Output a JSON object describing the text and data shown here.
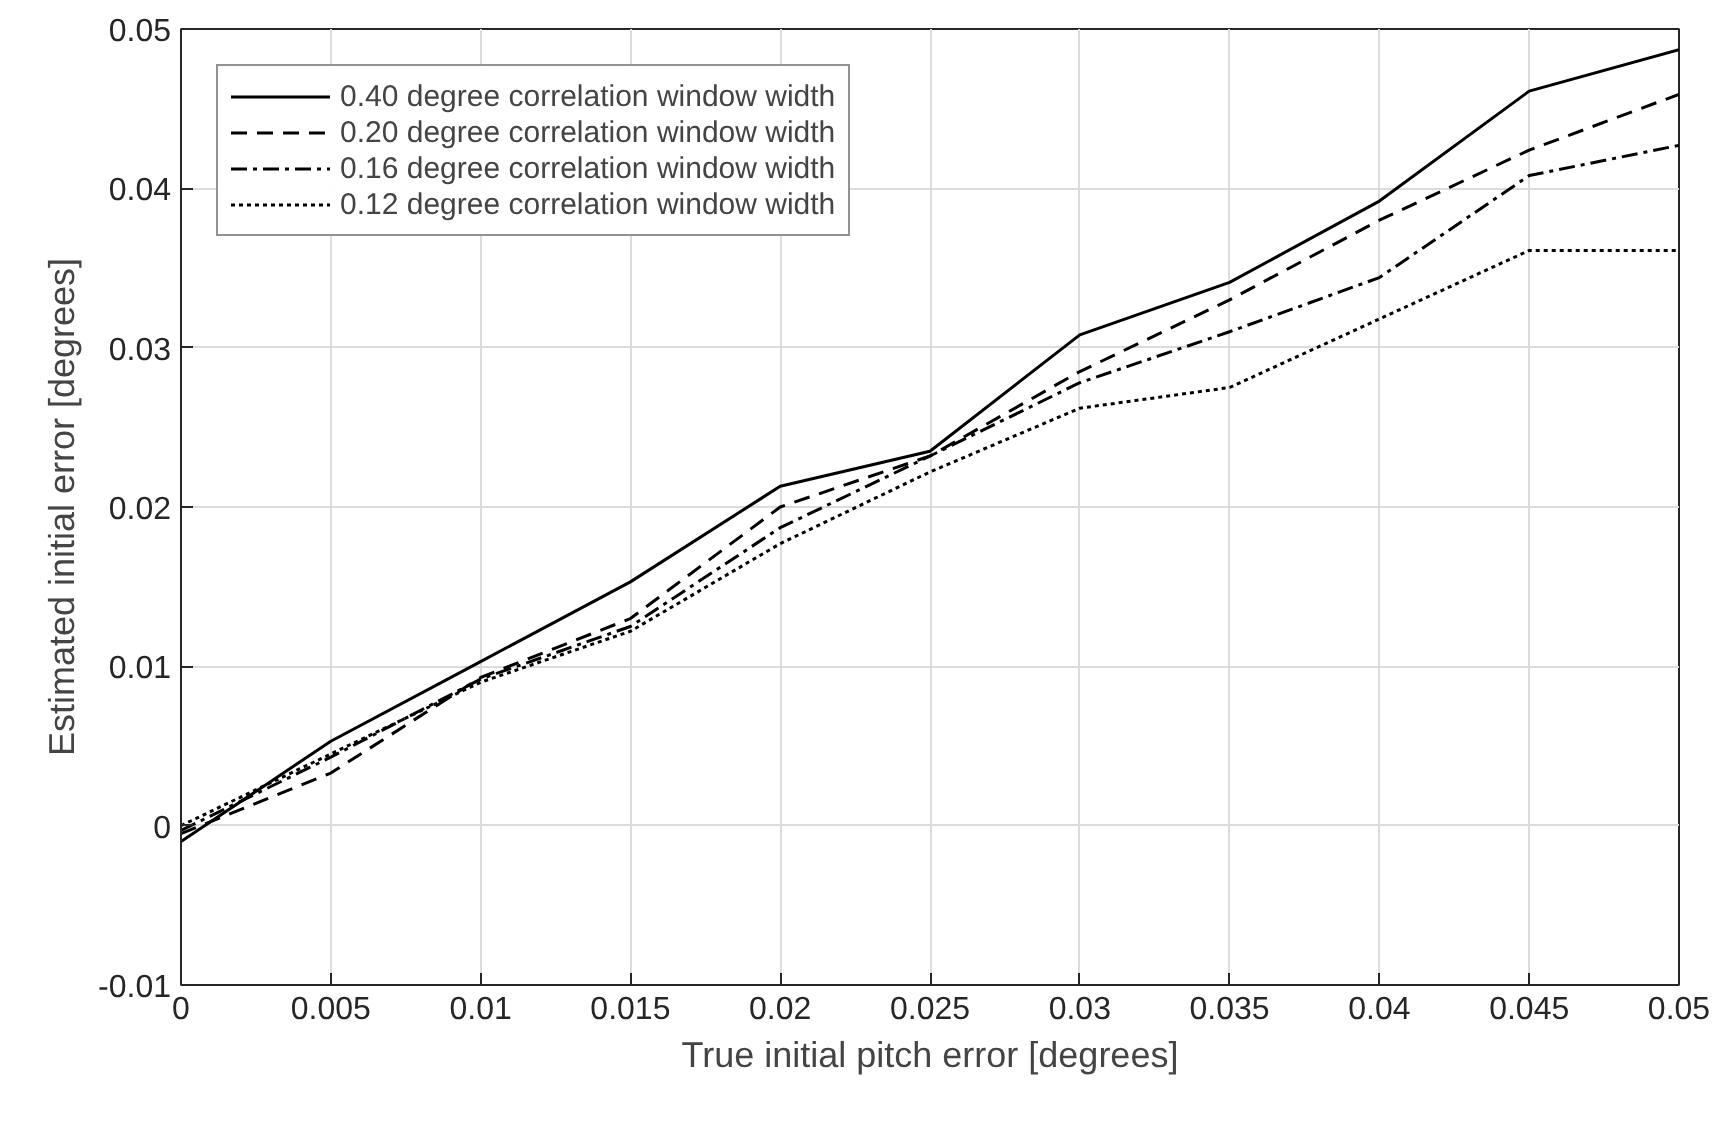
{
  "chart_data": {
    "type": "line",
    "xlabel": "True initial pitch error [degrees]",
    "ylabel": "Estimated initial error [degrees]",
    "x": [
      0,
      0.005,
      0.01,
      0.015,
      0.02,
      0.025,
      0.03,
      0.035,
      0.04,
      0.045,
      0.05
    ],
    "xlim": [
      0,
      0.05
    ],
    "xticks": [
      0,
      0.005,
      0.01,
      0.015,
      0.02,
      0.025,
      0.03,
      0.035,
      0.04,
      0.045,
      0.05
    ],
    "ylim": [
      -0.01,
      0.05
    ],
    "yticks": [
      -0.01,
      0,
      0.01,
      0.02,
      0.03,
      0.04,
      0.05
    ],
    "grid": true,
    "legend": "top left",
    "marker": "none",
    "series": [
      {
        "name": "0.40 degree correlation window width",
        "color": "#000000",
        "line_style": "solid",
        "values": [
          -0.001,
          0.0053,
          0.0103,
          0.0153,
          0.0213,
          0.0235,
          0.0308,
          0.0341,
          0.0392,
          0.0461,
          0.0487
        ]
      },
      {
        "name": "0.20 degree correlation window width",
        "color": "#000000",
        "line_style": "dashed",
        "values": [
          -0.0005,
          0.0033,
          0.0093,
          0.013,
          0.02,
          0.0232,
          0.0285,
          0.033,
          0.038,
          0.0424,
          0.0459
        ]
      },
      {
        "name": "0.16 degree correlation window width",
        "color": "#000000",
        "line_style": "dashdot",
        "values": [
          -0.0003,
          0.0043,
          0.0092,
          0.0125,
          0.0187,
          0.0232,
          0.0278,
          0.031,
          0.0344,
          0.0408,
          0.0427
        ]
      },
      {
        "name": "0.12 degree correlation window width",
        "color": "#000000",
        "line_style": "dotted",
        "values": [
          0.0,
          0.0045,
          0.009,
          0.0122,
          0.0177,
          0.0222,
          0.0262,
          0.0275,
          0.0318,
          0.0361,
          0.0361
        ]
      }
    ]
  }
}
